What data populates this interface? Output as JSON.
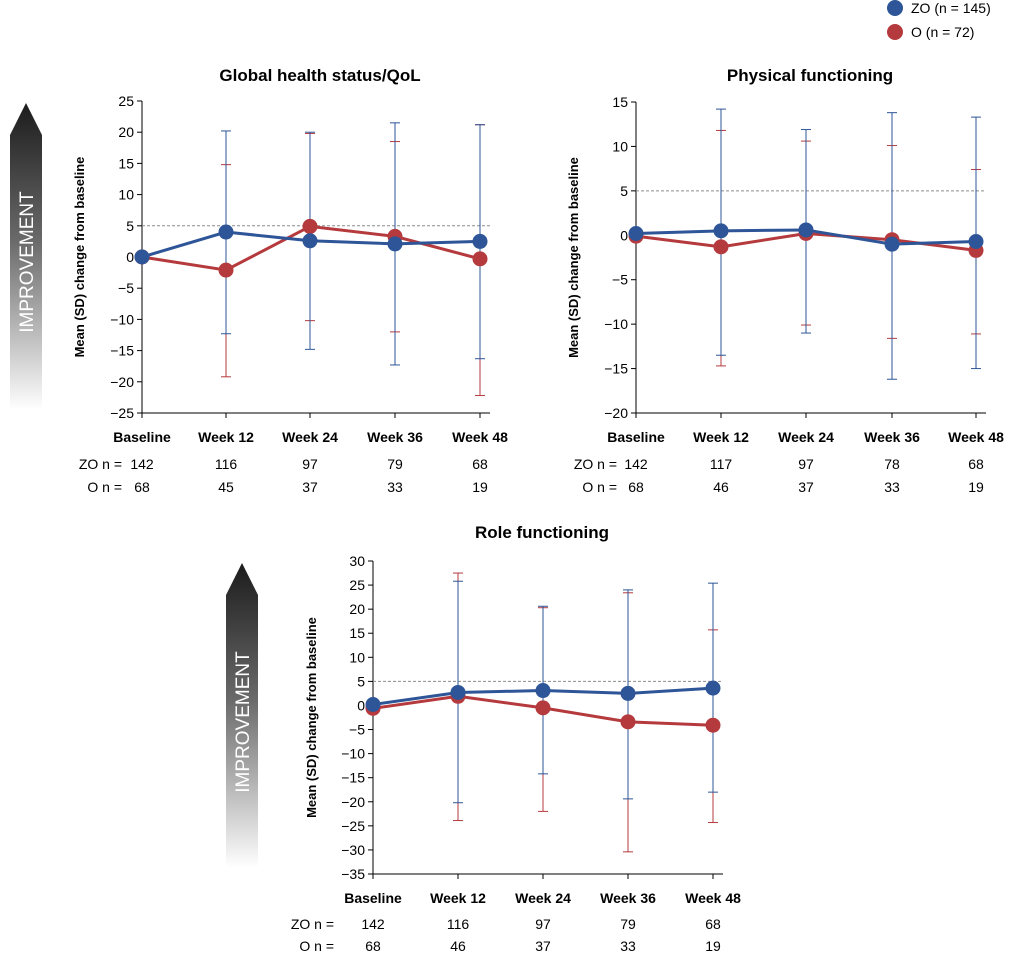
{
  "legend": [
    {
      "label": "ZO (n = 145)",
      "color": "#2e5597"
    },
    {
      "label": "O (n = 72)",
      "color": "#b53a3d"
    }
  ],
  "improvement_label": "IMPROVEMENT",
  "ylabel": "Mean (SD) change from baseline",
  "n_row_labels": [
    "ZO n =",
    "O n ="
  ],
  "colors": {
    "zo": "#2e5597",
    "o": "#b53a3d",
    "threshold": "#8c8c8c"
  },
  "chart_data": [
    {
      "type": "line",
      "title": "Global health status/QoL",
      "ylabel": "Mean (SD) change from baseline",
      "categories": [
        "Baseline",
        "Week 12",
        "Week 24",
        "Week 36",
        "Week 48"
      ],
      "ylim": [
        -25,
        25
      ],
      "yticks": [
        25,
        20,
        15,
        10,
        5,
        0,
        -5,
        -10,
        -15,
        -20,
        -25
      ],
      "reference_line": 5,
      "series": [
        {
          "name": "ZO",
          "values": [
            0,
            4.0,
            2.6,
            2.1,
            2.5
          ],
          "sd_upper": [
            0,
            20.2,
            20.0,
            21.5,
            21.2
          ],
          "sd_lower": [
            0,
            -12.3,
            -14.8,
            -17.3,
            -16.3
          ],
          "n": [
            "142",
            "116",
            "97",
            "79",
            "68"
          ]
        },
        {
          "name": "O",
          "values": [
            0,
            -2.1,
            4.9,
            3.3,
            -0.3
          ],
          "sd_upper": [
            0,
            14.8,
            19.8,
            18.5,
            21.2
          ],
          "sd_lower": [
            0,
            -19.2,
            -10.2,
            -12.0,
            -22.2
          ],
          "n": [
            "68",
            "45",
            "37",
            "33",
            "19"
          ]
        }
      ]
    },
    {
      "type": "line",
      "title": "Physical functioning",
      "ylabel": "Mean (SD) change from baseline",
      "categories": [
        "Baseline",
        "Week 12",
        "Week 24",
        "Week 36",
        "Week 48"
      ],
      "ylim": [
        -20,
        15
      ],
      "yticks": [
        15,
        10,
        5,
        0,
        -5,
        -10,
        -15,
        -20
      ],
      "reference_line": 5,
      "series": [
        {
          "name": "ZO",
          "values": [
            0.2,
            0.5,
            0.6,
            -1.0,
            -0.7
          ],
          "sd_upper": [
            0.2,
            14.2,
            11.9,
            13.8,
            13.3
          ],
          "sd_lower": [
            0.2,
            -13.5,
            -11.0,
            -16.2,
            -15.0
          ],
          "n": [
            "142",
            "117",
            "97",
            "78",
            "68"
          ]
        },
        {
          "name": "O",
          "values": [
            -0.1,
            -1.3,
            0.2,
            -0.5,
            -1.7
          ],
          "sd_upper": [
            -0.1,
            11.8,
            10.6,
            10.1,
            7.4
          ],
          "sd_lower": [
            -0.1,
            -14.7,
            -10.1,
            -11.6,
            -11.1
          ],
          "n": [
            "68",
            "46",
            "37",
            "33",
            "19"
          ]
        }
      ]
    },
    {
      "type": "line",
      "title": "Role functioning",
      "ylabel": "Mean (SD) change from baseline",
      "categories": [
        "Baseline",
        "Week 12",
        "Week 24",
        "Week 36",
        "Week 48"
      ],
      "ylim": [
        -35,
        30
      ],
      "yticks": [
        30,
        25,
        20,
        15,
        10,
        5,
        0,
        -5,
        -10,
        -15,
        -20,
        -25,
        -30,
        -35
      ],
      "reference_line": 5,
      "series": [
        {
          "name": "ZO",
          "values": [
            0.2,
            2.7,
            3.1,
            2.5,
            3.6
          ],
          "sd_upper": [
            0.2,
            25.8,
            20.6,
            24.0,
            25.4
          ],
          "sd_lower": [
            0.2,
            -20.2,
            -14.2,
            -19.4,
            -18.0
          ],
          "n": [
            "142",
            "116",
            "97",
            "79",
            "68"
          ]
        },
        {
          "name": "O",
          "values": [
            -0.6,
            1.9,
            -0.5,
            -3.4,
            -4.1
          ],
          "sd_upper": [
            -0.6,
            27.5,
            20.3,
            23.4,
            15.7
          ],
          "sd_lower": [
            -0.6,
            -23.9,
            -22.0,
            -30.4,
            -24.3
          ],
          "n": [
            "68",
            "46",
            "37",
            "33",
            "19"
          ]
        }
      ]
    }
  ]
}
